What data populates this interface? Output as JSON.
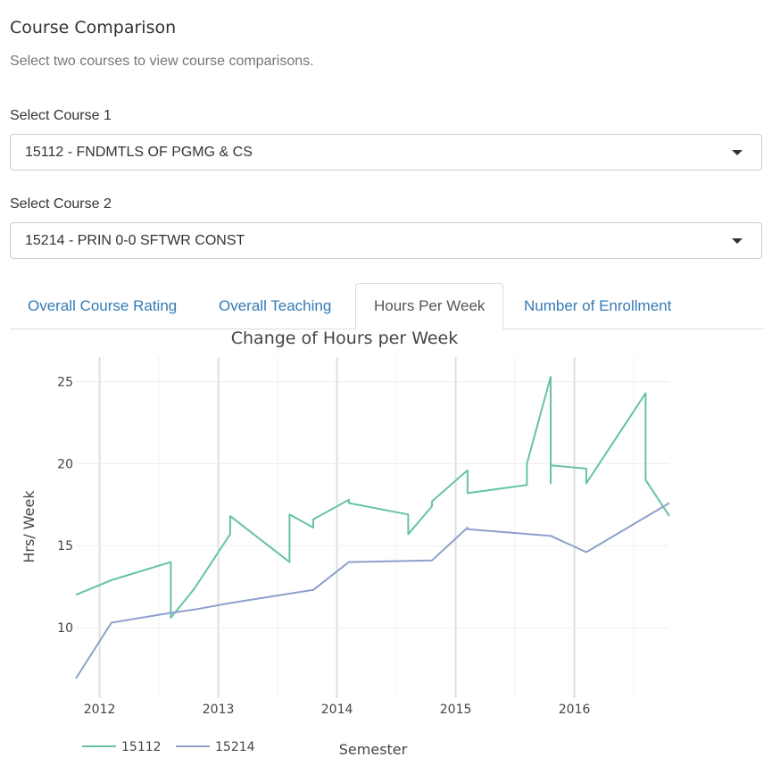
{
  "page": {
    "title": "Course Comparison",
    "subtitle": "Select two courses to view course comparisons."
  },
  "course1": {
    "label": "Select Course 1",
    "value": "15112 - FNDMTLS OF PGMG & CS"
  },
  "course2": {
    "label": "Select Course 2",
    "value": "15214 - PRIN 0-0 SFTWR CONST"
  },
  "tabs": [
    {
      "label": "Overall Course Rating",
      "active": false
    },
    {
      "label": "Overall Teaching",
      "active": false
    },
    {
      "label": "Hours Per Week",
      "active": true
    },
    {
      "label": "Number of Enrollment",
      "active": false
    }
  ],
  "icons": {
    "dropdown": "caret-down-icon"
  },
  "colors": {
    "link": "#337ab7",
    "series_15112": "#66c2a5",
    "series_15214": "#8da0cb"
  },
  "chart_data": {
    "type": "line",
    "title": "Change of Hours per Week",
    "xlabel": "Semester",
    "ylabel": "Hrs/ Week",
    "xlim": [
      2011.8,
      2016.8
    ],
    "ylim": [
      5.7,
      26.5
    ],
    "x_ticks": [
      2012,
      2013,
      2014,
      2015,
      2016
    ],
    "y_ticks": [
      10,
      15,
      20,
      25
    ],
    "grid": true,
    "legend": "bottom-left",
    "series": [
      {
        "name": "15112",
        "color": "#66c2a5",
        "points": [
          [
            2011.8,
            12.0
          ],
          [
            2012.1,
            12.9
          ],
          [
            2012.6,
            14.0
          ],
          [
            2012.6,
            10.6
          ],
          [
            2012.8,
            12.4
          ],
          [
            2013.1,
            15.7
          ],
          [
            2013.1,
            16.8
          ],
          [
            2013.6,
            14.0
          ],
          [
            2013.6,
            16.9
          ],
          [
            2013.8,
            16.1
          ],
          [
            2013.8,
            16.6
          ],
          [
            2014.1,
            17.8
          ],
          [
            2014.1,
            17.6
          ],
          [
            2014.6,
            16.9
          ],
          [
            2014.6,
            15.7
          ],
          [
            2014.8,
            17.4
          ],
          [
            2014.8,
            17.7
          ],
          [
            2015.1,
            19.6
          ],
          [
            2015.1,
            18.2
          ],
          [
            2015.6,
            18.7
          ],
          [
            2015.6,
            20.0
          ],
          [
            2015.8,
            25.3
          ],
          [
            2015.8,
            18.8
          ],
          [
            2015.8,
            19.9
          ],
          [
            2016.1,
            19.7
          ],
          [
            2016.1,
            18.8
          ],
          [
            2016.6,
            24.3
          ],
          [
            2016.6,
            19.0
          ],
          [
            2016.8,
            16.8
          ]
        ]
      },
      {
        "name": "15214",
        "color": "#8da0cb",
        "points": [
          [
            2011.8,
            6.9
          ],
          [
            2012.1,
            10.3
          ],
          [
            2012.6,
            10.9
          ],
          [
            2012.8,
            11.1
          ],
          [
            2013.1,
            11.5
          ],
          [
            2013.8,
            12.3
          ],
          [
            2014.1,
            14.0
          ],
          [
            2014.8,
            14.1
          ],
          [
            2015.1,
            16.1
          ],
          [
            2015.1,
            16.0
          ],
          [
            2015.8,
            15.6
          ],
          [
            2016.1,
            14.6
          ],
          [
            2016.8,
            17.6
          ]
        ]
      }
    ]
  }
}
